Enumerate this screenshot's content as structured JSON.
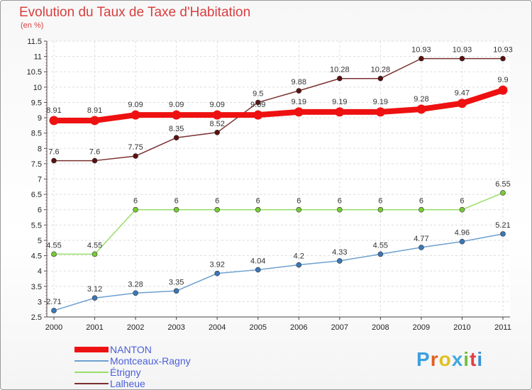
{
  "title": "Evolution du Taux de Taxe d'Habitation",
  "subtitle": "(en %)",
  "logo": "Proxiti",
  "chart_data": {
    "type": "line",
    "categories": [
      "2000",
      "2001",
      "2002",
      "2003",
      "2004",
      "2005",
      "2006",
      "2007",
      "2008",
      "2009",
      "2010",
      "2011"
    ],
    "ylim": [
      2.5,
      11.5
    ],
    "yticks": [
      "2.5",
      "3",
      "3.5",
      "4",
      "4.5",
      "5",
      "5.5",
      "6",
      "6.5",
      "7",
      "7.5",
      "8",
      "8.5",
      "9",
      "9.5",
      "10",
      "10.5",
      "11",
      "11.5"
    ],
    "legend_position": "bottom-left",
    "series": [
      {
        "name": "NANTON",
        "color": "#ee1111",
        "marker": "#ee1111",
        "values": [
          8.91,
          8.91,
          9.09,
          9.09,
          9.09,
          9.09,
          9.19,
          9.19,
          9.19,
          9.28,
          9.47,
          9.9
        ],
        "labels": [
          "8.91",
          "8.91",
          "9.09",
          "9.09",
          "9.09",
          "9.09",
          "9.19",
          "9.19",
          "9.19",
          "9.28",
          "9.47",
          "9.9"
        ]
      },
      {
        "name": "Montceaux-Ragny",
        "color": "#6ea0d0",
        "marker": "#3a78b8",
        "values": [
          2.71,
          3.12,
          3.28,
          3.35,
          3.92,
          4.04,
          4.2,
          4.33,
          4.55,
          4.77,
          4.96,
          5.21
        ],
        "labels": [
          "2.71",
          "3.12",
          "3.28",
          "3.35",
          "3.92",
          "4.04",
          "4.2",
          "4.33",
          "4.55",
          "4.77",
          "4.96",
          "5.21"
        ]
      },
      {
        "name": "Étrigny",
        "color": "#99dd66",
        "marker": "#77cc33",
        "values": [
          4.55,
          4.55,
          6,
          6,
          6,
          6,
          6,
          6,
          6,
          6,
          6,
          6.55
        ],
        "labels": [
          "4.55",
          "4.55",
          "6",
          "6",
          "6",
          "6",
          "6",
          "6",
          "6",
          "6",
          "6",
          "6.55"
        ]
      },
      {
        "name": "Lalheue",
        "color": "#7a3030",
        "marker": "#5a1010",
        "values": [
          7.6,
          7.6,
          7.75,
          8.35,
          8.52,
          9.5,
          9.88,
          10.28,
          10.28,
          10.93,
          10.93,
          10.93
        ],
        "labels": [
          "7.6",
          "7.6",
          "7.75",
          "8.35",
          "8.52",
          "9.5",
          "9.88",
          "10.28",
          "10.28",
          "10.93",
          "10.93",
          "10.93"
        ]
      }
    ]
  }
}
